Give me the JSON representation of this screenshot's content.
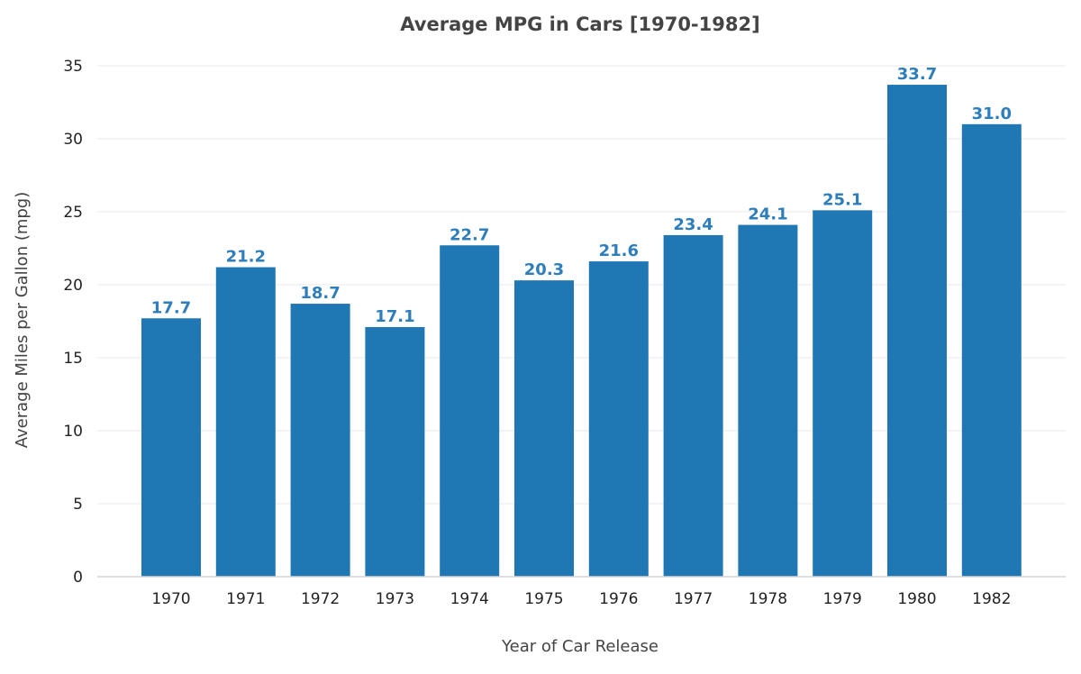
{
  "chart_data": {
    "type": "bar",
    "title": "Average MPG in Cars [1970-1982]",
    "xlabel": "Year of Car Release",
    "ylabel": "Average Miles per Gallon (mpg)",
    "categories": [
      "1970",
      "1971",
      "1972",
      "1973",
      "1974",
      "1975",
      "1976",
      "1977",
      "1978",
      "1979",
      "1980",
      "1982"
    ],
    "values": [
      17.7,
      21.2,
      18.7,
      17.1,
      22.7,
      20.3,
      21.6,
      23.4,
      24.1,
      25.1,
      33.7,
      31.0
    ],
    "data_labels": [
      "17.7",
      "21.2",
      "18.7",
      "17.1",
      "22.7",
      "20.3",
      "21.6",
      "23.4",
      "24.1",
      "25.1",
      "33.7",
      "31.0"
    ],
    "ylim": [
      0,
      35
    ],
    "yticks": [
      "0",
      "5",
      "10",
      "15",
      "20",
      "25",
      "30",
      "35"
    ],
    "grid": true,
    "legend": "none",
    "bar_color": "#1f77b4",
    "label_color": "#2e7ebc"
  }
}
